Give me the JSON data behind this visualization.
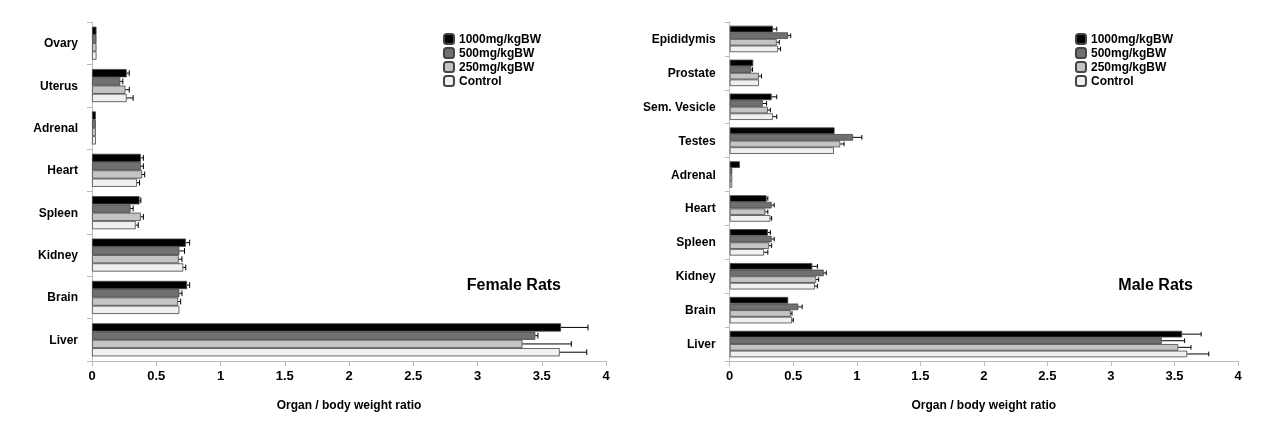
{
  "chart_data": [
    {
      "type": "bar",
      "orientation": "horizontal",
      "title": "Female Rats",
      "xlabel": "Organ / body weight ratio",
      "categories": [
        "Ovary",
        "Uterus",
        "Adrenal",
        "Heart",
        "Spleen",
        "Kidney",
        "Brain",
        "Liver"
      ],
      "xlim": [
        0,
        4
      ],
      "xticks": [
        0,
        0.5,
        1,
        1.5,
        2,
        2.5,
        3,
        3.5,
        4
      ],
      "legend": "top right",
      "grid": false,
      "series": [
        {
          "name": "1000mg/kgBW",
          "color": "#000000",
          "values": [
            0.035,
            0.27,
            0.03,
            0.38,
            0.37,
            0.73,
            0.74,
            3.65
          ],
          "errors": [
            null,
            [
              0.27,
              0.29
            ],
            null,
            [
              0.38,
              0.4
            ],
            [
              0.37,
              0.38
            ],
            [
              0.73,
              0.76
            ],
            [
              0.74,
              0.76
            ],
            [
              3.65,
              3.86
            ]
          ]
        },
        {
          "name": "500mg/kgBW",
          "color": "#707070",
          "values": [
            0.035,
            0.22,
            0.03,
            0.38,
            0.3,
            0.68,
            0.68,
            3.45
          ],
          "errors": [
            null,
            [
              0.22,
              0.24
            ],
            null,
            [
              0.38,
              0.4
            ],
            [
              0.3,
              0.32
            ],
            [
              0.68,
              0.72
            ],
            [
              0.68,
              0.7
            ],
            [
              3.45,
              3.47
            ]
          ]
        },
        {
          "name": "250mg/kgBW",
          "color": "#c4c4c4",
          "values": [
            0.035,
            0.26,
            0.03,
            0.39,
            0.38,
            0.675,
            0.67,
            3.35
          ],
          "errors": [
            null,
            [
              0.26,
              0.29
            ],
            null,
            [
              0.39,
              0.41
            ],
            [
              0.38,
              0.4
            ],
            [
              0.675,
              0.7
            ],
            [
              0.67,
              0.69
            ],
            [
              3.35,
              3.73
            ]
          ]
        },
        {
          "name": "Control",
          "color": "#f0f0f0",
          "values": [
            0.035,
            0.27,
            0.03,
            0.35,
            0.34,
            0.71,
            0.68,
            3.64
          ],
          "errors": [
            null,
            [
              0.27,
              0.32
            ],
            null,
            [
              0.35,
              0.37
            ],
            [
              0.34,
              0.36
            ],
            [
              0.71,
              0.73
            ],
            null,
            [
              3.64,
              3.85
            ]
          ]
        }
      ]
    },
    {
      "type": "bar",
      "orientation": "horizontal",
      "title": "Male Rats",
      "xlabel": "Organ / body weight ratio",
      "categories": [
        "Epididymis",
        "Prostate",
        "Sem. Vesicle",
        "Testes",
        "Adrenal",
        "Heart",
        "Spleen",
        "Kidney",
        "Brain",
        "Liver"
      ],
      "xlim": [
        0,
        4
      ],
      "xticks": [
        0,
        0.5,
        1,
        1.5,
        2,
        2.5,
        3,
        3.5,
        4
      ],
      "legend": "top right",
      "grid": false,
      "series": [
        {
          "name": "1000mg/kgBW",
          "color": "#000000",
          "values": [
            0.34,
            0.185,
            0.33,
            0.825,
            0.08,
            0.29,
            0.3,
            0.65,
            0.46,
            3.56
          ],
          "errors": [
            [
              0.34,
              0.37
            ],
            null,
            [
              0.33,
              0.37
            ],
            null,
            null,
            [
              0.29,
              0.3
            ],
            [
              0.3,
              0.32
            ],
            [
              0.65,
              0.69
            ],
            null,
            [
              3.56,
              3.71
            ]
          ]
        },
        {
          "name": "500mg/kgBW",
          "color": "#707070",
          "values": [
            0.46,
            0.17,
            0.26,
            0.97,
            0.02,
            0.33,
            0.33,
            0.74,
            0.54,
            3.4
          ],
          "errors": [
            [
              0.46,
              0.48
            ],
            [
              0.17,
              0.18
            ],
            [
              0.26,
              0.29
            ],
            [
              0.97,
              1.04
            ],
            null,
            [
              0.33,
              0.35
            ],
            [
              0.33,
              0.35
            ],
            [
              0.74,
              0.76
            ],
            [
              0.54,
              0.57
            ],
            [
              3.4,
              3.58
            ]
          ]
        },
        {
          "name": "250mg/kgBW",
          "color": "#c4c4c4",
          "values": [
            0.37,
            0.23,
            0.3,
            0.87,
            0.02,
            0.28,
            0.31,
            0.68,
            0.48,
            3.53
          ],
          "errors": [
            [
              0.37,
              0.39
            ],
            [
              0.23,
              0.25
            ],
            [
              0.3,
              0.32
            ],
            [
              0.87,
              0.9
            ],
            null,
            [
              0.28,
              0.3
            ],
            [
              0.31,
              0.33
            ],
            [
              0.68,
              0.7
            ],
            [
              0.48,
              0.49
            ],
            [
              3.53,
              3.63
            ]
          ]
        },
        {
          "name": "Control",
          "color": "#f0f0f0",
          "values": [
            0.38,
            0.23,
            0.34,
            0.82,
            0.02,
            0.32,
            0.27,
            0.67,
            0.49,
            3.6
          ],
          "errors": [
            [
              0.38,
              0.4
            ],
            null,
            [
              0.34,
              0.37
            ],
            null,
            null,
            [
              0.32,
              0.33
            ],
            [
              0.27,
              0.3
            ],
            [
              0.67,
              0.69
            ],
            [
              0.49,
              0.5
            ],
            [
              3.6,
              3.77
            ]
          ]
        }
      ]
    }
  ]
}
